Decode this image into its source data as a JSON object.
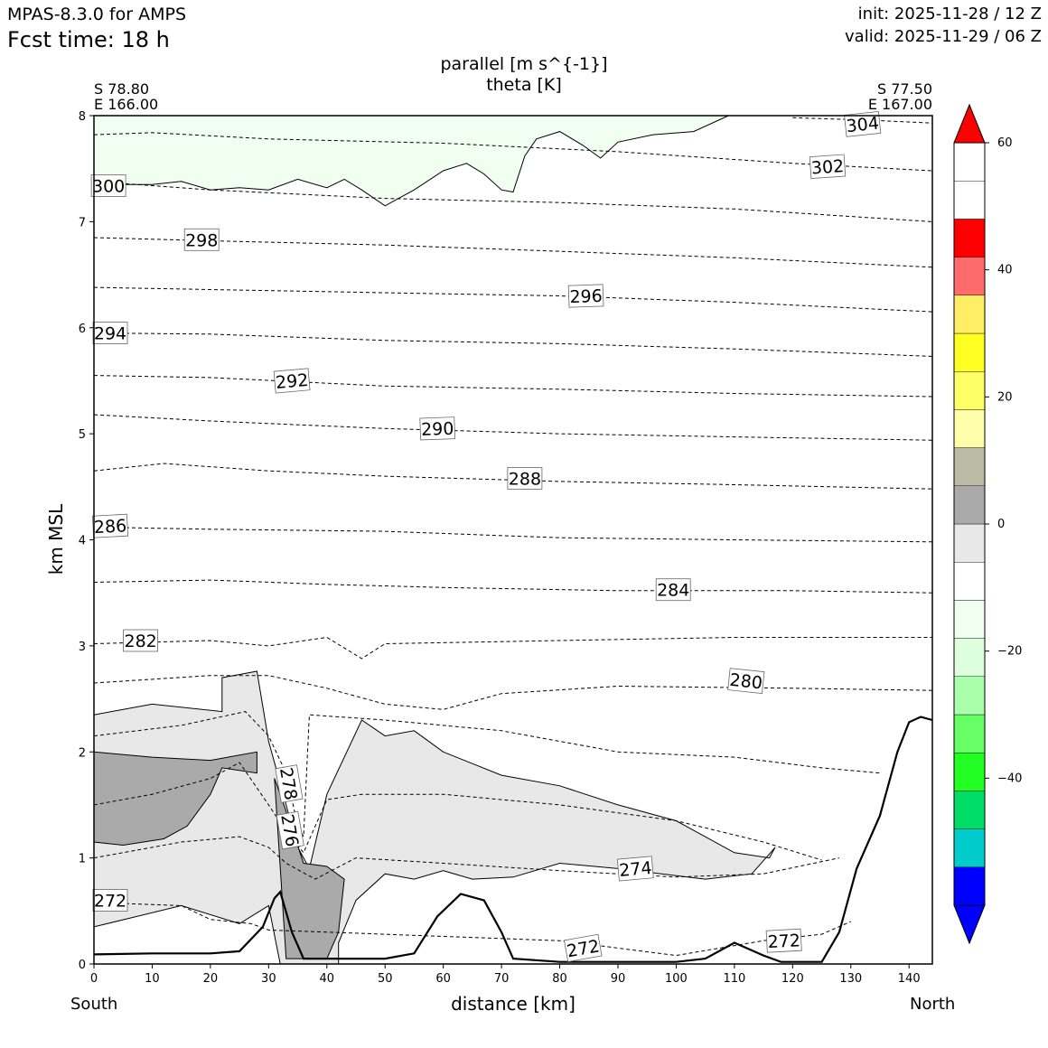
{
  "header": {
    "model": "MPAS-8.3.0 for AMPS",
    "fcst_time": "Fcst time:   18 h",
    "init": "init: 2025-11-28 / 12 Z",
    "valid": "valid: 2025-11-29 / 06 Z"
  },
  "section": {
    "start_lat": "S 78.80",
    "start_lon": "E 166.00",
    "end_lat": "S 77.50",
    "end_lon": "E 167.00",
    "south_label": "South",
    "north_label": "North"
  },
  "colors": {
    "neg_levels": [
      "#0000ff",
      "#00cccc",
      "#00dd66",
      "#22ff22",
      "#66ff66",
      "#aaffaa",
      "#ddffdd",
      "#f0fff0"
    ],
    "pos_levels": [
      "#ffffff",
      "#e8e8e8",
      "#aaaaaa",
      "#bbbba6",
      "#ffffaa",
      "#ffff66",
      "#ffff22",
      "#ffee66",
      "#ff6b6b",
      "#ff0000"
    ],
    "terrain": "#000000"
  },
  "chart_data": {
    "type": "cross-section-contour",
    "title": "parallel [m s^{-1}]",
    "subtitle": "theta [K]",
    "xlabel": "distance [km]",
    "ylabel": "km MSL",
    "xlim": [
      0,
      144
    ],
    "ylim": [
      0,
      8
    ],
    "xticks": [
      0,
      10,
      20,
      30,
      40,
      50,
      60,
      70,
      80,
      90,
      100,
      110,
      120,
      130,
      140
    ],
    "yticks": [
      0,
      1,
      2,
      3,
      4,
      5,
      6,
      7,
      8
    ],
    "colorbar": {
      "min": -60,
      "max": 60,
      "step": 6,
      "tick_values": [
        -40,
        -20,
        0,
        20,
        40,
        60
      ],
      "tick_labels": [
        "−40",
        "−20",
        "0",
        "20",
        "40",
        "60"
      ]
    },
    "theta_labels": [
      {
        "text": "304",
        "x": 132,
        "y": 7.92,
        "angle": -6
      },
      {
        "text": "302",
        "x": 126,
        "y": 7.52,
        "angle": -4
      },
      {
        "text": "300",
        "x": 2.5,
        "y": 7.34,
        "angle": 0
      },
      {
        "text": "298",
        "x": 18.5,
        "y": 6.83,
        "angle": 0
      },
      {
        "text": "296",
        "x": 84.5,
        "y": 6.3,
        "angle": -2
      },
      {
        "text": "294",
        "x": 2.8,
        "y": 5.95,
        "angle": 0
      },
      {
        "text": "292",
        "x": 34,
        "y": 5.5,
        "angle": -5
      },
      {
        "text": "290",
        "x": 59,
        "y": 5.05,
        "angle": -2
      },
      {
        "text": "288",
        "x": 74,
        "y": 4.58,
        "angle": 0
      },
      {
        "text": "286",
        "x": 2.8,
        "y": 4.13,
        "angle": -3
      },
      {
        "text": "284",
        "x": 99.5,
        "y": 3.53,
        "angle": 0
      },
      {
        "text": "282",
        "x": 8,
        "y": 3.05,
        "angle": 0
      },
      {
        "text": "280",
        "x": 112,
        "y": 2.67,
        "angle": 6
      },
      {
        "text": "278",
        "x": 33.5,
        "y": 1.7,
        "angle": 80
      },
      {
        "text": "276",
        "x": 33.7,
        "y": 1.26,
        "angle": 80
      },
      {
        "text": "274",
        "x": 93,
        "y": 0.9,
        "angle": -5
      },
      {
        "text": "272",
        "x": 2.8,
        "y": 0.6,
        "angle": 0
      },
      {
        "text": "272",
        "x": 84,
        "y": 0.15,
        "angle": -10
      },
      {
        "text": "272",
        "x": 118.5,
        "y": 0.22,
        "angle": -3
      }
    ],
    "theta_isentropes": [
      {
        "level": 304,
        "points": [
          [
            120,
            7.98
          ],
          [
            132,
            7.96
          ],
          [
            144,
            7.93
          ]
        ]
      },
      {
        "level": 302,
        "points": [
          [
            0,
            7.82
          ],
          [
            10,
            7.84
          ],
          [
            30,
            7.78
          ],
          [
            60,
            7.74
          ],
          [
            90,
            7.66
          ],
          [
            120,
            7.55
          ],
          [
            144,
            7.48
          ]
        ]
      },
      {
        "level": 300,
        "points": [
          [
            0,
            7.38
          ],
          [
            20,
            7.3
          ],
          [
            50,
            7.22
          ],
          [
            80,
            7.18
          ],
          [
            110,
            7.12
          ],
          [
            144,
            7.0
          ]
        ]
      },
      {
        "level": 298,
        "points": [
          [
            0,
            6.85
          ],
          [
            20,
            6.82
          ],
          [
            50,
            6.78
          ],
          [
            80,
            6.72
          ],
          [
            110,
            6.66
          ],
          [
            144,
            6.57
          ]
        ]
      },
      {
        "level": 296,
        "points": [
          [
            0,
            6.38
          ],
          [
            20,
            6.36
          ],
          [
            50,
            6.33
          ],
          [
            80,
            6.3
          ],
          [
            110,
            6.24
          ],
          [
            144,
            6.15
          ]
        ]
      },
      {
        "level": 294,
        "points": [
          [
            0,
            5.95
          ],
          [
            20,
            5.94
          ],
          [
            50,
            5.88
          ],
          [
            80,
            5.85
          ],
          [
            110,
            5.8
          ],
          [
            144,
            5.73
          ]
        ]
      },
      {
        "level": 292,
        "points": [
          [
            0,
            5.55
          ],
          [
            20,
            5.53
          ],
          [
            50,
            5.45
          ],
          [
            80,
            5.42
          ],
          [
            110,
            5.38
          ],
          [
            144,
            5.35
          ]
        ]
      },
      {
        "level": 290,
        "points": [
          [
            0,
            5.18
          ],
          [
            20,
            5.12
          ],
          [
            50,
            5.05
          ],
          [
            80,
            5.0
          ],
          [
            110,
            4.97
          ],
          [
            144,
            4.94
          ]
        ]
      },
      {
        "level": 288,
        "points": [
          [
            0,
            4.65
          ],
          [
            12,
            4.72
          ],
          [
            30,
            4.65
          ],
          [
            50,
            4.6
          ],
          [
            80,
            4.55
          ],
          [
            110,
            4.52
          ],
          [
            144,
            4.48
          ]
        ]
      },
      {
        "level": 286,
        "points": [
          [
            0,
            4.12
          ],
          [
            20,
            4.1
          ],
          [
            50,
            4.08
          ],
          [
            80,
            4.02
          ],
          [
            110,
            4.0
          ],
          [
            144,
            3.98
          ]
        ]
      },
      {
        "level": 284,
        "points": [
          [
            0,
            3.6
          ],
          [
            20,
            3.62
          ],
          [
            40,
            3.58
          ],
          [
            60,
            3.55
          ],
          [
            90,
            3.52
          ],
          [
            120,
            3.52
          ],
          [
            144,
            3.5
          ]
        ]
      },
      {
        "level": 282,
        "points": [
          [
            0,
            3.02
          ],
          [
            20,
            3.05
          ],
          [
            30,
            3.0
          ],
          [
            40,
            3.08
          ],
          [
            46,
            2.88
          ],
          [
            50,
            3.02
          ],
          [
            80,
            3.05
          ],
          [
            110,
            3.08
          ],
          [
            144,
            3.08
          ]
        ]
      },
      {
        "level": 280,
        "points": [
          [
            0,
            2.65
          ],
          [
            20,
            2.72
          ],
          [
            30,
            2.72
          ],
          [
            40,
            2.6
          ],
          [
            50,
            2.45
          ],
          [
            60,
            2.4
          ],
          [
            70,
            2.55
          ],
          [
            90,
            2.62
          ],
          [
            120,
            2.6
          ],
          [
            144,
            2.58
          ]
        ]
      },
      {
        "level": 278,
        "points": [
          [
            0,
            2.15
          ],
          [
            15,
            2.25
          ],
          [
            26,
            2.38
          ],
          [
            30,
            2.15
          ],
          [
            33,
            1.8
          ],
          [
            35,
            1.3
          ],
          [
            36,
            1.2
          ],
          [
            37,
            2.35
          ],
          [
            50,
            2.3
          ],
          [
            70,
            2.2
          ],
          [
            90,
            2.0
          ],
          [
            110,
            1.95
          ],
          [
            125,
            1.85
          ],
          [
            135,
            1.8
          ]
        ]
      },
      {
        "level": 276,
        "points": [
          [
            0,
            1.5
          ],
          [
            10,
            1.6
          ],
          [
            20,
            1.75
          ],
          [
            25,
            1.9
          ],
          [
            30,
            1.5
          ],
          [
            33,
            1.25
          ],
          [
            36,
            1.05
          ],
          [
            40,
            1.55
          ],
          [
            46,
            1.6
          ],
          [
            60,
            1.6
          ],
          [
            80,
            1.5
          ],
          [
            100,
            1.35
          ],
          [
            115,
            1.15
          ],
          [
            125,
            0.98
          ]
        ]
      },
      {
        "level": 274,
        "points": [
          [
            0,
            1.0
          ],
          [
            15,
            1.15
          ],
          [
            25,
            1.2
          ],
          [
            30,
            1.1
          ],
          [
            33,
            0.95
          ],
          [
            38,
            0.8
          ],
          [
            45,
            1.0
          ],
          [
            60,
            0.95
          ],
          [
            80,
            0.88
          ],
          [
            100,
            0.82
          ],
          [
            115,
            0.85
          ],
          [
            128,
            1.0
          ]
        ]
      },
      {
        "level": 272,
        "points": [
          [
            0,
            0.58
          ],
          [
            15,
            0.55
          ],
          [
            20,
            0.42
          ],
          [
            27,
            0.38
          ],
          [
            30,
            0.32
          ],
          [
            80,
            0.22
          ],
          [
            100,
            0.08
          ],
          [
            115,
            0.22
          ],
          [
            125,
            0.28
          ],
          [
            130,
            0.4
          ]
        ]
      }
    ],
    "shaded_regions": [
      {
        "name": "wind-neg-light",
        "value_range": [
          -6,
          0
        ],
        "points": [
          [
            0,
            8
          ],
          [
            109,
            8
          ],
          [
            103,
            7.85
          ],
          [
            96,
            7.82
          ],
          [
            90,
            7.75
          ],
          [
            87,
            7.6
          ],
          [
            84,
            7.72
          ],
          [
            80,
            7.85
          ],
          [
            76,
            7.78
          ],
          [
            74,
            7.62
          ],
          [
            72,
            7.28
          ],
          [
            70,
            7.3
          ],
          [
            67,
            7.45
          ],
          [
            64,
            7.55
          ],
          [
            60,
            7.48
          ],
          [
            55,
            7.3
          ],
          [
            50,
            7.15
          ],
          [
            46,
            7.3
          ],
          [
            43,
            7.4
          ],
          [
            40,
            7.32
          ],
          [
            35,
            7.4
          ],
          [
            30,
            7.3
          ],
          [
            25,
            7.32
          ],
          [
            20,
            7.3
          ],
          [
            15,
            7.38
          ],
          [
            10,
            7.35
          ],
          [
            5,
            7.35
          ],
          [
            0,
            7.38
          ]
        ]
      },
      {
        "name": "wind-pos-light",
        "value_range": [
          6,
          12
        ],
        "points": [
          [
            0,
            2.35
          ],
          [
            10,
            2.45
          ],
          [
            22,
            2.38
          ],
          [
            22,
            2.7
          ],
          [
            28,
            2.76
          ],
          [
            30,
            2.1
          ],
          [
            33,
            1.5
          ],
          [
            35,
            1.1
          ],
          [
            37,
            0.9
          ],
          [
            40,
            1.6
          ],
          [
            46,
            2.3
          ],
          [
            50,
            2.15
          ],
          [
            55,
            2.2
          ],
          [
            60,
            2.0
          ],
          [
            70,
            1.78
          ],
          [
            80,
            1.68
          ],
          [
            90,
            1.5
          ],
          [
            100,
            1.35
          ],
          [
            110,
            1.05
          ],
          [
            116,
            1.0
          ],
          [
            117,
            1.1
          ],
          [
            113,
            0.85
          ],
          [
            105,
            0.8
          ],
          [
            90,
            0.9
          ],
          [
            80,
            0.95
          ],
          [
            72,
            0.82
          ],
          [
            65,
            0.8
          ],
          [
            60,
            0.88
          ],
          [
            55,
            0.8
          ],
          [
            50,
            0.85
          ],
          [
            45,
            0.6
          ],
          [
            42,
            0.2
          ],
          [
            42,
            0.0
          ],
          [
            32,
            0.0
          ],
          [
            30,
            0.55
          ],
          [
            25,
            0.38
          ],
          [
            15,
            0.55
          ],
          [
            0,
            0.35
          ]
        ]
      },
      {
        "name": "wind-pos-mid-left",
        "value_range": [
          12,
          18
        ],
        "points": [
          [
            0,
            2.0
          ],
          [
            10,
            1.95
          ],
          [
            20,
            1.92
          ],
          [
            28,
            2.0
          ],
          [
            28,
            1.8
          ],
          [
            22,
            1.85
          ],
          [
            20,
            1.6
          ],
          [
            16,
            1.3
          ],
          [
            12,
            1.18
          ],
          [
            5,
            1.12
          ],
          [
            0,
            1.15
          ]
        ]
      },
      {
        "name": "wind-pos-mid-core",
        "value_range": [
          12,
          18
        ],
        "points": [
          [
            31,
            1.75
          ],
          [
            32,
            1.6
          ],
          [
            34,
            1.28
          ],
          [
            36,
            0.95
          ],
          [
            40,
            0.92
          ],
          [
            43,
            0.8
          ],
          [
            42,
            0.3
          ],
          [
            40,
            0.05
          ],
          [
            33,
            0.05
          ]
        ]
      }
    ],
    "terrain_profile": [
      [
        0,
        0.09
      ],
      [
        10,
        0.1
      ],
      [
        20,
        0.1
      ],
      [
        25,
        0.12
      ],
      [
        29,
        0.35
      ],
      [
        31,
        0.62
      ],
      [
        32,
        0.68
      ],
      [
        34,
        0.3
      ],
      [
        36,
        0.05
      ],
      [
        40,
        0.05
      ],
      [
        50,
        0.05
      ],
      [
        55,
        0.1
      ],
      [
        59,
        0.45
      ],
      [
        63,
        0.66
      ],
      [
        67,
        0.6
      ],
      [
        70,
        0.3
      ],
      [
        72,
        0.05
      ],
      [
        80,
        0.02
      ],
      [
        100,
        0.02
      ],
      [
        105,
        0.05
      ],
      [
        110,
        0.2
      ],
      [
        115,
        0.08
      ],
      [
        118,
        0.02
      ],
      [
        125,
        0.02
      ],
      [
        128,
        0.3
      ],
      [
        131,
        0.9
      ],
      [
        135,
        1.4
      ],
      [
        138,
        2.0
      ],
      [
        140,
        2.28
      ],
      [
        142,
        2.33
      ],
      [
        144,
        2.3
      ]
    ]
  }
}
